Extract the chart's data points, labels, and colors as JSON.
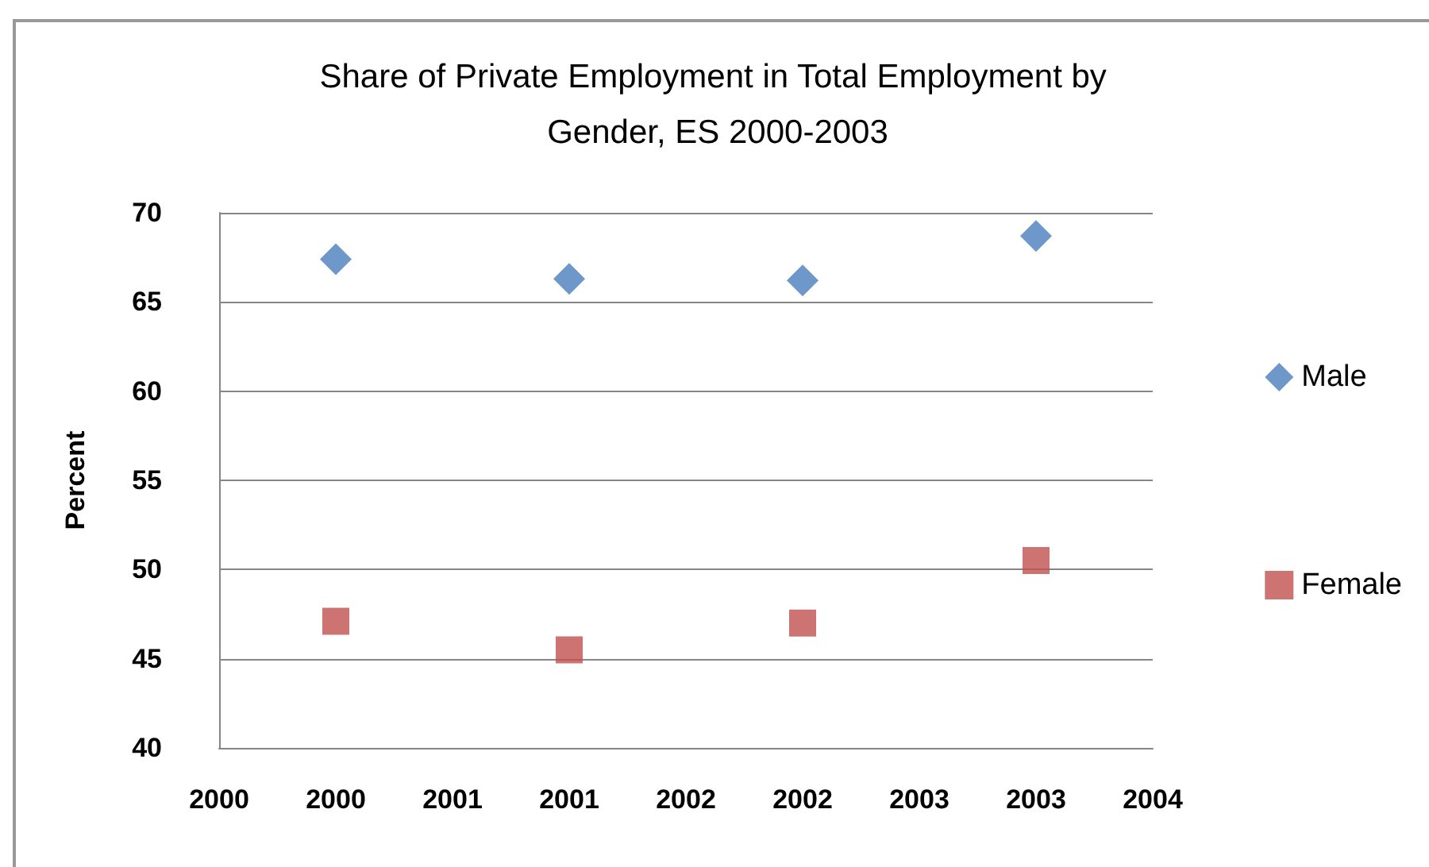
{
  "chart_data": {
    "type": "scatter",
    "title": "Share of Private Employment in Total Employment by Gender, ES 2000-2003",
    "ylabel": "Percent",
    "x": [
      2000,
      2001,
      2002,
      2003
    ],
    "series": [
      {
        "name": "Male",
        "color": "#4a7ebb",
        "marker": "diamond",
        "values": [
          67.4,
          66.3,
          66.2,
          68.7
        ]
      },
      {
        "name": "Female",
        "color": "#c0504d",
        "marker": "square",
        "values": [
          47.1,
          45.5,
          47.0,
          50.5
        ]
      }
    ],
    "xlim": [
      1999.5,
      2003.5
    ],
    "xticks": [
      {
        "value": 1999.5,
        "label": "2000"
      },
      2000,
      {
        "value": 2000.5,
        "label": "2001"
      },
      2001,
      {
        "value": 2001.5,
        "label": "2002"
      },
      2002,
      {
        "value": 2002.5,
        "label": "2003"
      },
      2003,
      {
        "value": 2003.5,
        "label": "2004"
      }
    ],
    "ylim": [
      40,
      70
    ],
    "yticks": [
      40,
      45,
      50,
      55,
      60,
      65,
      70
    ],
    "grid": "y",
    "legend": "right"
  }
}
